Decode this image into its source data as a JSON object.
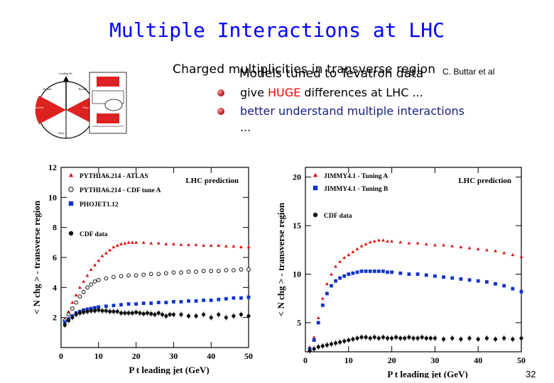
{
  "slide": {
    "title": "Multiple Interactions at LHC",
    "overlap_line_1": "Charged multiplicities in transverse region",
    "overlap_line_2": "Models tuned to Tevatron data",
    "credit": "C. Buttar et al",
    "bullet_1_pre": "give ",
    "bullet_1_highlight": "HUGE",
    "bullet_1_post": " differences at LHC ...",
    "bullet_2": "better understand multiple interactions",
    "bullet_3": "...",
    "page_number": "32",
    "colors": {
      "title": "#0000ff",
      "highlight": "#ff0000",
      "red": "#dd1111",
      "blue": "#1133cc"
    }
  },
  "chart_data": [
    {
      "type": "scatter",
      "title": "",
      "annotation": "LHC prediction",
      "xlabel": "P t leading jet (GeV)",
      "ylabel": "< N chg > - transverse region",
      "xlim": [
        0,
        50
      ],
      "ylim": [
        0,
        12
      ],
      "xticks": [
        0,
        10,
        20,
        30,
        40,
        50
      ],
      "yticks": [
        2,
        4,
        6,
        8,
        10,
        12
      ],
      "legend": [
        "PYTHIA6.214 - ATLAS",
        "PHOJET1.12",
        "PYTHIA6.214 - CDF tune A",
        "CDF data"
      ],
      "series": [
        {
          "name": "PYTHIA6.214 - ATLAS",
          "color": "red",
          "marker": "triangle",
          "points": [
            [
              1,
              1.9
            ],
            [
              2,
              2.4
            ],
            [
              3,
              3.0
            ],
            [
              4,
              3.5
            ],
            [
              5,
              4.0
            ],
            [
              6,
              4.4
            ],
            [
              7,
              4.8
            ],
            [
              8,
              5.2
            ],
            [
              9,
              5.5
            ],
            [
              10,
              5.8
            ],
            [
              11,
              6.1
            ],
            [
              12,
              6.3
            ],
            [
              13,
              6.5
            ],
            [
              14,
              6.7
            ],
            [
              15,
              6.8
            ],
            [
              16,
              6.9
            ],
            [
              17,
              6.95
            ],
            [
              18,
              7.0
            ],
            [
              19,
              7.0
            ],
            [
              20,
              7.0
            ],
            [
              22,
              7.0
            ],
            [
              24,
              6.95
            ],
            [
              26,
              6.95
            ],
            [
              28,
              6.9
            ],
            [
              30,
              6.9
            ],
            [
              32,
              6.85
            ],
            [
              34,
              6.85
            ],
            [
              36,
              6.85
            ],
            [
              38,
              6.8
            ],
            [
              40,
              6.8
            ],
            [
              42,
              6.8
            ],
            [
              44,
              6.75
            ],
            [
              46,
              6.75
            ],
            [
              48,
              6.7
            ],
            [
              50,
              6.7
            ]
          ]
        },
        {
          "name": "PYTHIA6.214 - CDF tune A",
          "color": "black",
          "marker": "open-circle",
          "points": [
            [
              1,
              1.8
            ],
            [
              2,
              2.2
            ],
            [
              3,
              2.6
            ],
            [
              4,
              3.0
            ],
            [
              5,
              3.4
            ],
            [
              6,
              3.7
            ],
            [
              7,
              4.0
            ],
            [
              8,
              4.2
            ],
            [
              9,
              4.4
            ],
            [
              10,
              4.5
            ],
            [
              12,
              4.6
            ],
            [
              14,
              4.7
            ],
            [
              16,
              4.75
            ],
            [
              18,
              4.8
            ],
            [
              20,
              4.8
            ],
            [
              22,
              4.85
            ],
            [
              24,
              4.9
            ],
            [
              26,
              4.9
            ],
            [
              28,
              4.95
            ],
            [
              30,
              5.0
            ],
            [
              32,
              5.0
            ],
            [
              34,
              5.05
            ],
            [
              36,
              5.05
            ],
            [
              38,
              5.1
            ],
            [
              40,
              5.1
            ],
            [
              42,
              5.1
            ],
            [
              44,
              5.15
            ],
            [
              46,
              5.15
            ],
            [
              48,
              5.2
            ],
            [
              50,
              5.2
            ]
          ]
        },
        {
          "name": "PHOJET1.12",
          "color": "blue",
          "marker": "square",
          "points": [
            [
              1,
              1.7
            ],
            [
              2,
              1.9
            ],
            [
              3,
              2.1
            ],
            [
              4,
              2.3
            ],
            [
              5,
              2.4
            ],
            [
              6,
              2.5
            ],
            [
              7,
              2.55
            ],
            [
              8,
              2.6
            ],
            [
              9,
              2.65
            ],
            [
              10,
              2.7
            ],
            [
              12,
              2.75
            ],
            [
              14,
              2.8
            ],
            [
              16,
              2.85
            ],
            [
              18,
              2.9
            ],
            [
              20,
              2.9
            ],
            [
              22,
              2.95
            ],
            [
              24,
              2.95
            ],
            [
              26,
              3.0
            ],
            [
              28,
              3.0
            ],
            [
              30,
              3.05
            ],
            [
              32,
              3.05
            ],
            [
              34,
              3.1
            ],
            [
              36,
              3.1
            ],
            [
              38,
              3.15
            ],
            [
              40,
              3.15
            ],
            [
              42,
              3.2
            ],
            [
              44,
              3.25
            ],
            [
              46,
              3.3
            ],
            [
              48,
              3.3
            ],
            [
              50,
              3.35
            ]
          ]
        },
        {
          "name": "CDF data",
          "color": "black",
          "marker": "filled-circle",
          "points": [
            [
              1,
              1.5
            ],
            [
              2,
              1.8
            ],
            [
              3,
              2.0
            ],
            [
              4,
              2.2
            ],
            [
              5,
              2.3
            ],
            [
              6,
              2.35
            ],
            [
              7,
              2.4
            ],
            [
              8,
              2.45
            ],
            [
              9,
              2.45
            ],
            [
              10,
              2.5
            ],
            [
              11,
              2.45
            ],
            [
              12,
              2.45
            ],
            [
              13,
              2.4
            ],
            [
              14,
              2.4
            ],
            [
              15,
              2.4
            ],
            [
              16,
              2.3
            ],
            [
              17,
              2.3
            ],
            [
              18,
              2.3
            ],
            [
              19,
              2.3
            ],
            [
              20,
              2.35
            ],
            [
              21,
              2.3
            ],
            [
              22,
              2.25
            ],
            [
              23,
              2.3
            ],
            [
              24,
              2.25
            ],
            [
              25,
              2.2
            ],
            [
              26,
              2.3
            ],
            [
              27,
              2.2
            ],
            [
              28,
              2.1
            ],
            [
              29,
              2.2
            ],
            [
              30,
              2.2
            ],
            [
              32,
              2.2
            ],
            [
              34,
              2.1
            ],
            [
              36,
              2.1
            ],
            [
              38,
              2.2
            ],
            [
              40,
              2.0
            ],
            [
              42,
              2.2
            ],
            [
              44,
              2.0
            ],
            [
              46,
              2.1
            ],
            [
              48,
              2.2
            ],
            [
              50,
              2.1
            ]
          ]
        }
      ]
    },
    {
      "type": "scatter",
      "title": "",
      "annotation": "LHC prediction",
      "xlabel": "P t leading jet (GeV)",
      "ylabel": "< N chg > - transverse region",
      "xlim": [
        0,
        50
      ],
      "ylim": [
        2,
        21
      ],
      "xticks": [
        0,
        10,
        20,
        30,
        40,
        50
      ],
      "yticks": [
        5,
        10,
        15,
        20
      ],
      "legend": [
        "JIMMY4.1 - Tuning A",
        "JIMMY4.1 - Tuning B",
        "CDF data"
      ],
      "series": [
        {
          "name": "JIMMY4.1 - Tuning A",
          "color": "red",
          "marker": "triangle",
          "points": [
            [
              1,
              2.5
            ],
            [
              2,
              3.5
            ],
            [
              3,
              5.5
            ],
            [
              4,
              7.5
            ],
            [
              5,
              9.0
            ],
            [
              6,
              10.0
            ],
            [
              7,
              10.8
            ],
            [
              8,
              11.3
            ],
            [
              9,
              11.7
            ],
            [
              10,
              12.0
            ],
            [
              11,
              12.3
            ],
            [
              12,
              12.6
            ],
            [
              13,
              12.9
            ],
            [
              14,
              13.1
            ],
            [
              15,
              13.3
            ],
            [
              16,
              13.4
            ],
            [
              17,
              13.5
            ],
            [
              18,
              13.5
            ],
            [
              19,
              13.4
            ],
            [
              20,
              13.4
            ],
            [
              22,
              13.3
            ],
            [
              24,
              13.2
            ],
            [
              26,
              13.2
            ],
            [
              28,
              13.1
            ],
            [
              30,
              13.0
            ],
            [
              32,
              13.0
            ],
            [
              34,
              12.9
            ],
            [
              36,
              12.8
            ],
            [
              38,
              12.7
            ],
            [
              40,
              12.6
            ],
            [
              42,
              12.5
            ],
            [
              44,
              12.4
            ],
            [
              46,
              12.2
            ],
            [
              48,
              12.0
            ],
            [
              50,
              11.8
            ]
          ]
        },
        {
          "name": "JIMMY4.1 - Tuning B",
          "color": "blue",
          "marker": "square",
          "points": [
            [
              1,
              2.3
            ],
            [
              2,
              3.2
            ],
            [
              3,
              5.0
            ],
            [
              4,
              6.8
            ],
            [
              5,
              8.0
            ],
            [
              6,
              8.8
            ],
            [
              7,
              9.3
            ],
            [
              8,
              9.6
            ],
            [
              9,
              9.8
            ],
            [
              10,
              10.0
            ],
            [
              11,
              10.1
            ],
            [
              12,
              10.2
            ],
            [
              13,
              10.3
            ],
            [
              14,
              10.3
            ],
            [
              15,
              10.3
            ],
            [
              16,
              10.3
            ],
            [
              17,
              10.3
            ],
            [
              18,
              10.3
            ],
            [
              19,
              10.2
            ],
            [
              20,
              10.2
            ],
            [
              22,
              10.1
            ],
            [
              24,
              10.0
            ],
            [
              26,
              10.0
            ],
            [
              28,
              9.9
            ],
            [
              30,
              9.8
            ],
            [
              32,
              9.7
            ],
            [
              34,
              9.6
            ],
            [
              36,
              9.5
            ],
            [
              38,
              9.4
            ],
            [
              40,
              9.3
            ],
            [
              42,
              9.2
            ],
            [
              44,
              9.0
            ],
            [
              46,
              8.8
            ],
            [
              48,
              8.5
            ],
            [
              50,
              8.2
            ]
          ]
        },
        {
          "name": "CDF data",
          "color": "black",
          "marker": "filled-circle",
          "points": [
            [
              1,
              2.1
            ],
            [
              2,
              2.3
            ],
            [
              3,
              2.5
            ],
            [
              4,
              2.6
            ],
            [
              5,
              2.7
            ],
            [
              6,
              2.8
            ],
            [
              7,
              2.9
            ],
            [
              8,
              3.0
            ],
            [
              9,
              3.1
            ],
            [
              10,
              3.2
            ],
            [
              11,
              3.3
            ],
            [
              12,
              3.4
            ],
            [
              13,
              3.5
            ],
            [
              14,
              3.5
            ],
            [
              15,
              3.4
            ],
            [
              16,
              3.5
            ],
            [
              17,
              3.4
            ],
            [
              18,
              3.5
            ],
            [
              19,
              3.4
            ],
            [
              20,
              3.4
            ],
            [
              21,
              3.5
            ],
            [
              22,
              3.4
            ],
            [
              23,
              3.4
            ],
            [
              24,
              3.5
            ],
            [
              25,
              3.4
            ],
            [
              26,
              3.4
            ],
            [
              27,
              3.5
            ],
            [
              28,
              3.4
            ],
            [
              29,
              3.4
            ],
            [
              30,
              3.4
            ],
            [
              32,
              3.3
            ],
            [
              34,
              3.4
            ],
            [
              36,
              3.3
            ],
            [
              38,
              3.4
            ],
            [
              40,
              3.3
            ],
            [
              42,
              3.4
            ],
            [
              44,
              3.3
            ],
            [
              46,
              3.4
            ],
            [
              48,
              3.3
            ],
            [
              50,
              3.4
            ]
          ]
        }
      ]
    }
  ]
}
